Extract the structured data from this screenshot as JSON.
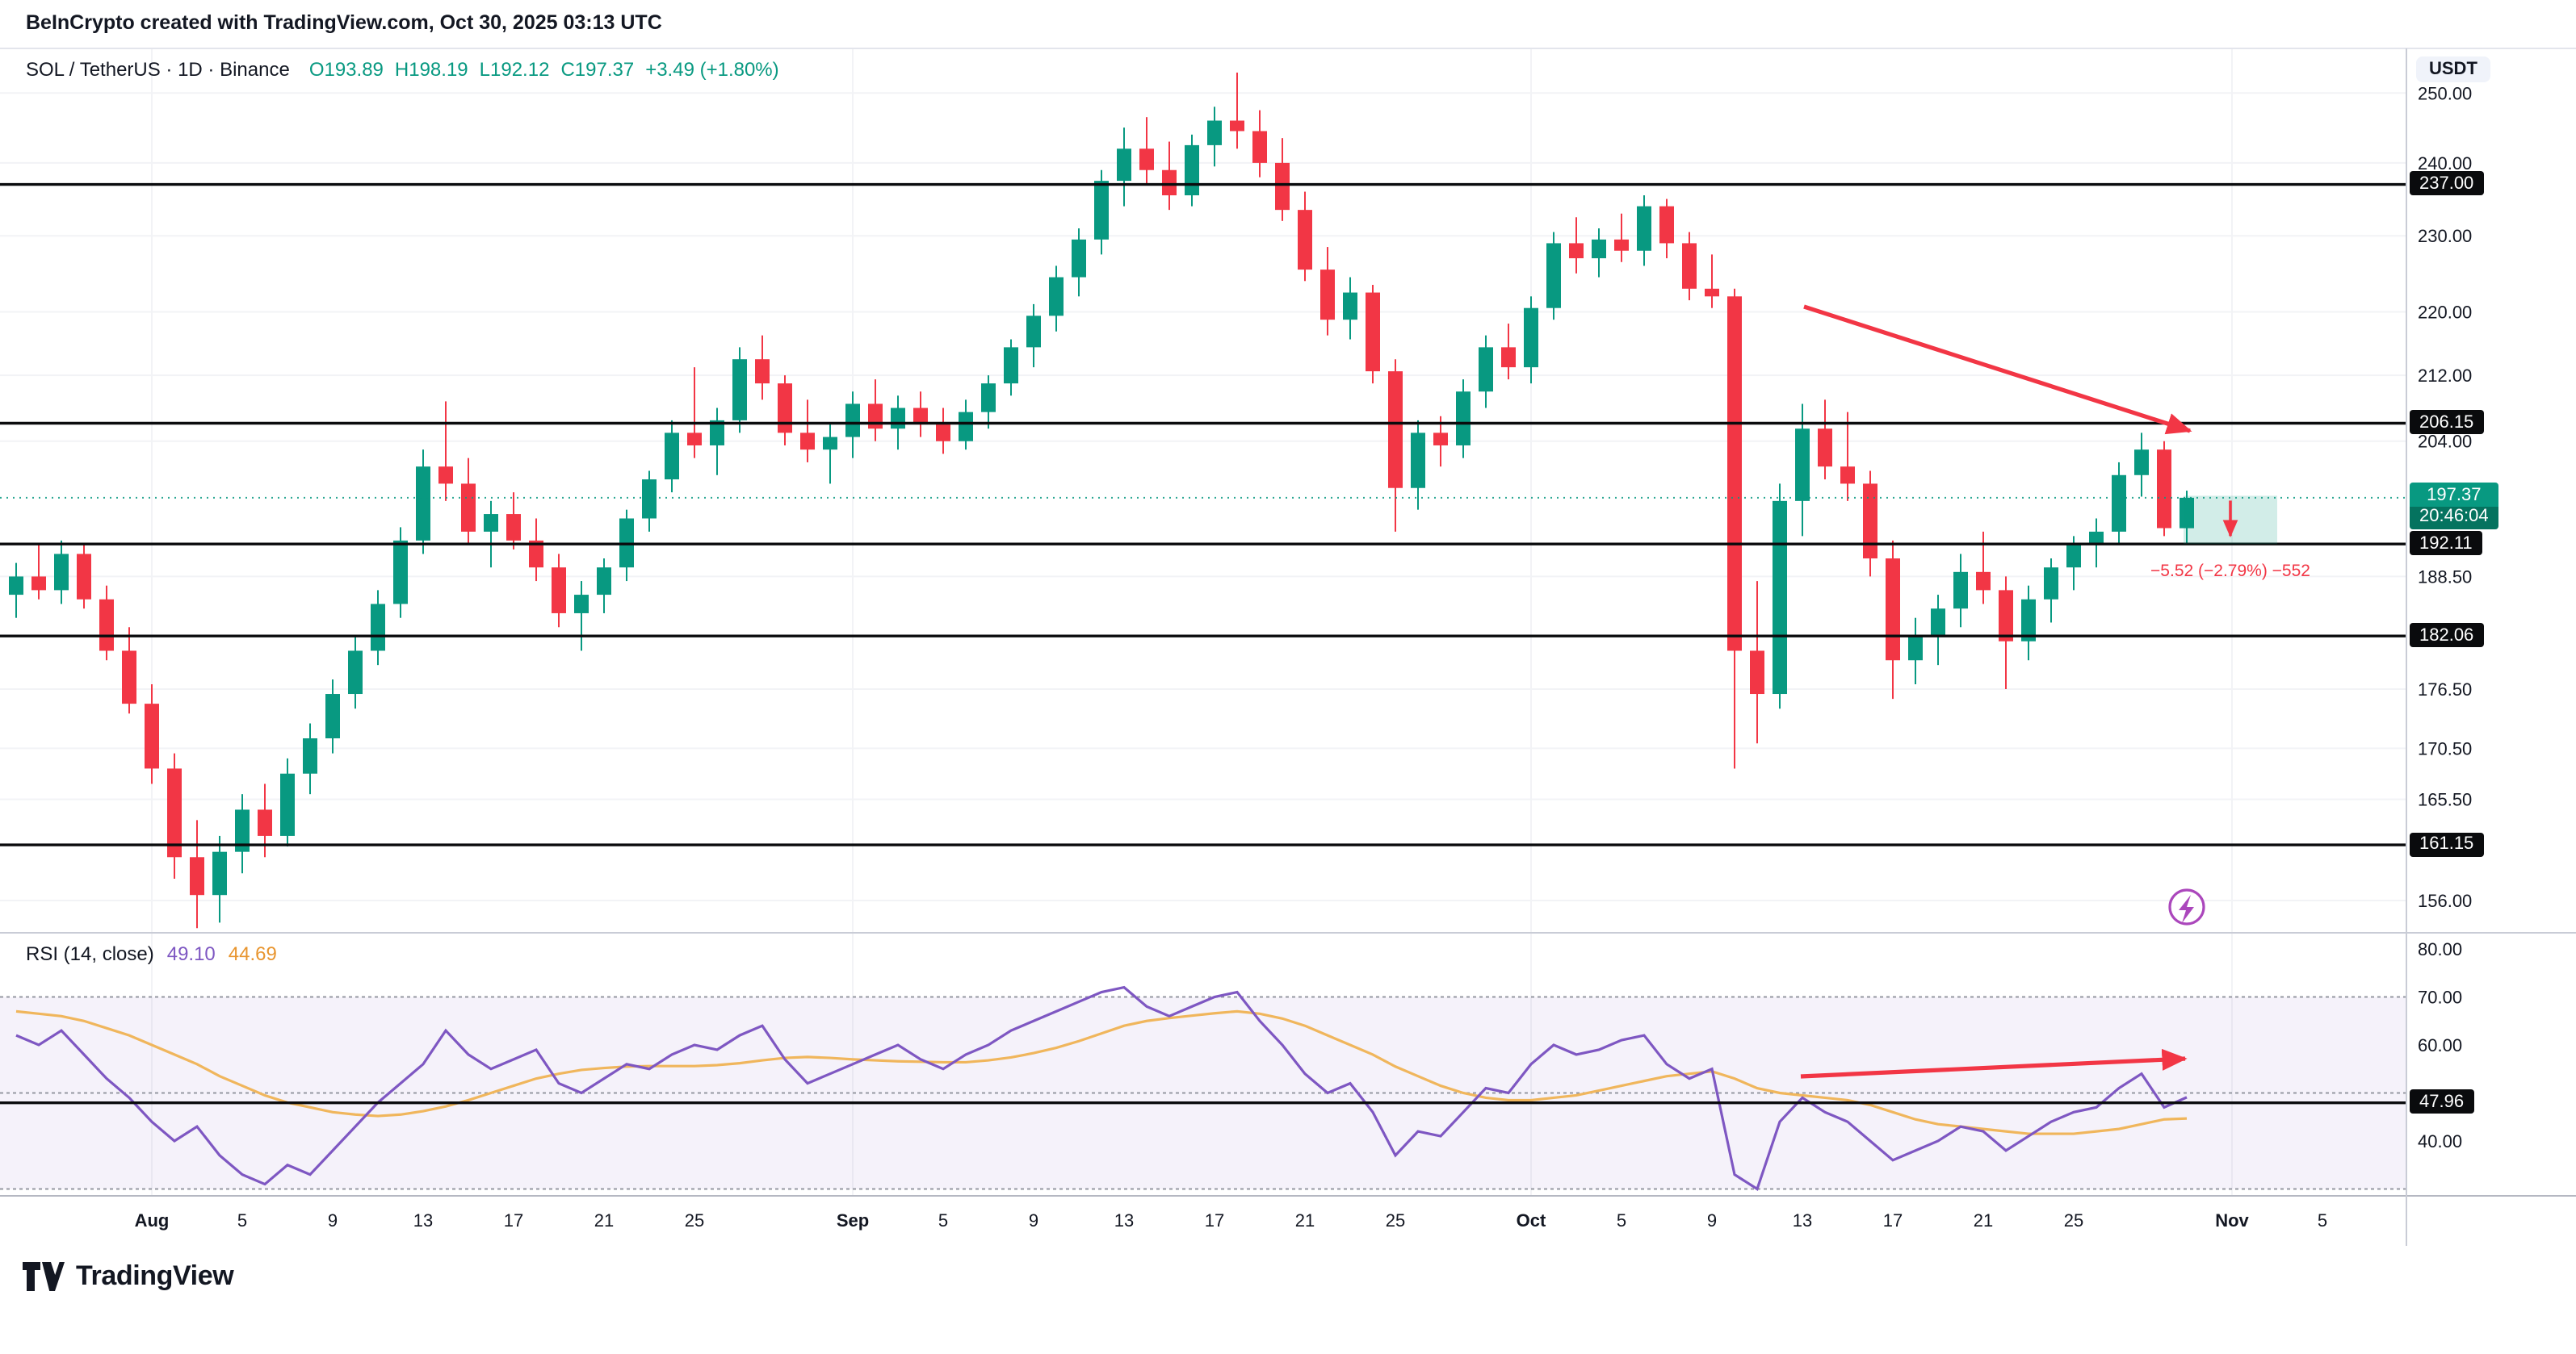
{
  "header": {
    "attribution": "BeInCrypto created with TradingView.com, Oct 30, 2025 03:13 UTC"
  },
  "symbol_bar": {
    "title": "SOL / TetherUS · 1D · Binance",
    "open": "O193.89",
    "high": "H198.19",
    "low": "L192.12",
    "close": "C197.37",
    "change": "+3.49 (+1.80%)"
  },
  "price_scale": {
    "currency": "USDT"
  },
  "rsi_bar": {
    "label": "RSI (14, close)",
    "value": "49.10",
    "ma_value": "44.69"
  },
  "footer": {
    "logo_text": "TradingView"
  },
  "colors": {
    "up": "#089981",
    "down": "#F23645",
    "arrow": "#F23645",
    "rsi": "#7E57C2",
    "rsi_ma": "#F0B65C",
    "rsi_ma_label": "#E8952F",
    "line_black": "#0A0B0D",
    "band_fill": "rgba(126,87,194,0.08)",
    "dashed": "#9598A1",
    "grid": "#F2F3F6",
    "lightning": "#AB47BC"
  },
  "chart_data": {
    "type": "candlestick",
    "title": "SOL / TetherUS · 1D · Binance",
    "exchange": "Binance",
    "interval": "1D",
    "y_scale": "log",
    "ohlc_display": {
      "open": 193.89,
      "high": 198.19,
      "low": 192.12,
      "close": 197.37,
      "change": "+3.49 (+1.80%)"
    },
    "price_ticks": [
      {
        "label": "250.00",
        "value": 250
      },
      {
        "label": "240.00",
        "value": 240
      },
      {
        "label": "230.00",
        "value": 230
      },
      {
        "label": "220.00",
        "value": 220
      },
      {
        "label": "212.00",
        "value": 212
      },
      {
        "label": "204.00",
        "value": 204
      },
      {
        "label": "188.50",
        "value": 188.5
      },
      {
        "label": "176.50",
        "value": 176.5
      },
      {
        "label": "170.50",
        "value": 170.5
      },
      {
        "label": "165.50",
        "value": 165.5
      },
      {
        "label": "156.00",
        "value": 156
      }
    ],
    "level_lines": [
      {
        "label": "237.00",
        "value": 237
      },
      {
        "label": "206.15",
        "value": 206.15
      },
      {
        "label": "192.11",
        "value": 192.11
      },
      {
        "label": "182.06",
        "value": 182.06
      },
      {
        "label": "161.15",
        "value": 161.15
      }
    ],
    "last_price": {
      "label": "197.37",
      "value": 197.37,
      "countdown": "20:46:04"
    },
    "x_ticks": [
      {
        "label": "Aug",
        "index": 6,
        "major": true
      },
      {
        "label": "5",
        "index": 10
      },
      {
        "label": "9",
        "index": 14
      },
      {
        "label": "13",
        "index": 18
      },
      {
        "label": "17",
        "index": 22
      },
      {
        "label": "21",
        "index": 26
      },
      {
        "label": "25",
        "index": 30
      },
      {
        "label": "Sep",
        "index": 37,
        "major": true
      },
      {
        "label": "5",
        "index": 41
      },
      {
        "label": "9",
        "index": 45
      },
      {
        "label": "13",
        "index": 49
      },
      {
        "label": "17",
        "index": 53
      },
      {
        "label": "21",
        "index": 57
      },
      {
        "label": "25",
        "index": 61
      },
      {
        "label": "Oct",
        "index": 67,
        "major": true
      },
      {
        "label": "5",
        "index": 71
      },
      {
        "label": "9",
        "index": 75
      },
      {
        "label": "13",
        "index": 79
      },
      {
        "label": "17",
        "index": 83
      },
      {
        "label": "21",
        "index": 87
      },
      {
        "label": "25",
        "index": 91
      },
      {
        "label": "Nov",
        "index": 98,
        "major": true
      },
      {
        "label": "5",
        "index": 102
      }
    ],
    "candles": [
      [
        186.5,
        190.0,
        184.0,
        188.5
      ],
      [
        188.5,
        192.0,
        186.0,
        187.0
      ],
      [
        187.0,
        192.5,
        185.5,
        191.0
      ],
      [
        191.0,
        192.0,
        185.0,
        186.0
      ],
      [
        186.0,
        187.5,
        179.5,
        180.5
      ],
      [
        180.5,
        183.0,
        174.0,
        175.0
      ],
      [
        175.0,
        177.0,
        167.0,
        168.5
      ],
      [
        168.5,
        170.0,
        158.0,
        160.0
      ],
      [
        160.0,
        163.5,
        153.5,
        156.5
      ],
      [
        156.5,
        162.0,
        154.0,
        160.5
      ],
      [
        160.5,
        166.0,
        158.5,
        164.5
      ],
      [
        164.5,
        167.0,
        160.0,
        162.0
      ],
      [
        162.0,
        169.5,
        161.0,
        168.0
      ],
      [
        168.0,
        173.0,
        166.0,
        171.5
      ],
      [
        171.5,
        177.5,
        170.0,
        176.0
      ],
      [
        176.0,
        182.0,
        174.5,
        180.5
      ],
      [
        180.5,
        187.0,
        179.0,
        185.5
      ],
      [
        185.5,
        194.0,
        184.0,
        192.5
      ],
      [
        192.5,
        203.0,
        191.0,
        201.0
      ],
      [
        201.0,
        208.8,
        197.0,
        199.0
      ],
      [
        199.0,
        202.0,
        192.0,
        193.5
      ],
      [
        193.5,
        197.0,
        189.5,
        195.5
      ],
      [
        195.5,
        198.0,
        191.5,
        192.5
      ],
      [
        192.5,
        195.0,
        188.0,
        189.5
      ],
      [
        189.5,
        191.0,
        183.0,
        184.5
      ],
      [
        184.5,
        188.0,
        180.5,
        186.5
      ],
      [
        186.5,
        190.5,
        184.5,
        189.5
      ],
      [
        189.5,
        196.0,
        188.0,
        195.0
      ],
      [
        195.0,
        200.5,
        193.5,
        199.5
      ],
      [
        199.5,
        206.5,
        198.0,
        205.0
      ],
      [
        205.0,
        213.0,
        202.0,
        203.5
      ],
      [
        203.5,
        208.0,
        200.0,
        206.5
      ],
      [
        206.5,
        215.5,
        205.0,
        214.0
      ],
      [
        214.0,
        217.0,
        209.0,
        211.0
      ],
      [
        211.0,
        212.0,
        203.5,
        205.0
      ],
      [
        205.0,
        209.0,
        201.5,
        203.0
      ],
      [
        203.0,
        206.0,
        199.0,
        204.5
      ],
      [
        204.5,
        210.0,
        202.0,
        208.5
      ],
      [
        208.5,
        211.5,
        204.0,
        205.5
      ],
      [
        205.5,
        209.5,
        203.0,
        208.0
      ],
      [
        208.0,
        210.0,
        204.5,
        206.0
      ],
      [
        206.0,
        208.0,
        202.5,
        204.0
      ],
      [
        204.0,
        209.0,
        203.0,
        207.5
      ],
      [
        207.5,
        212.0,
        205.5,
        211.0
      ],
      [
        211.0,
        216.5,
        209.5,
        215.5
      ],
      [
        215.5,
        221.0,
        213.0,
        219.5
      ],
      [
        219.5,
        226.0,
        217.5,
        224.5
      ],
      [
        224.5,
        231.0,
        222.0,
        229.5
      ],
      [
        229.5,
        239.0,
        227.5,
        237.5
      ],
      [
        237.5,
        245.0,
        234.0,
        242.0
      ],
      [
        242.0,
        246.5,
        237.0,
        239.0
      ],
      [
        239.0,
        243.0,
        233.5,
        235.5
      ],
      [
        235.5,
        244.0,
        234.0,
        242.5
      ],
      [
        242.5,
        248.0,
        239.5,
        246.0
      ],
      [
        246.0,
        253.0,
        242.0,
        244.5
      ],
      [
        244.5,
        247.5,
        238.0,
        240.0
      ],
      [
        240.0,
        243.5,
        232.0,
        233.5
      ],
      [
        233.5,
        236.0,
        224.0,
        225.5
      ],
      [
        225.5,
        228.5,
        217.0,
        219.0
      ],
      [
        219.0,
        224.5,
        216.5,
        222.5
      ],
      [
        222.5,
        223.5,
        211.0,
        212.5
      ],
      [
        212.5,
        214.0,
        193.5,
        198.5
      ],
      [
        198.5,
        206.5,
        196.0,
        205.0
      ],
      [
        205.0,
        207.0,
        201.0,
        203.5
      ],
      [
        203.5,
        211.5,
        202.0,
        210.0
      ],
      [
        210.0,
        217.0,
        208.0,
        215.5
      ],
      [
        215.5,
        218.5,
        211.5,
        213.0
      ],
      [
        213.0,
        222.0,
        211.0,
        220.5
      ],
      [
        220.5,
        230.5,
        219.0,
        229.0
      ],
      [
        229.0,
        232.5,
        225.0,
        227.0
      ],
      [
        227.0,
        231.0,
        224.5,
        229.5
      ],
      [
        229.5,
        233.0,
        226.5,
        228.0
      ],
      [
        228.0,
        235.5,
        226.0,
        234.0
      ],
      [
        234.0,
        235.0,
        227.0,
        229.0
      ],
      [
        229.0,
        230.5,
        221.5,
        223.0
      ],
      [
        223.0,
        227.5,
        220.5,
        222.0
      ],
      [
        222.0,
        223.0,
        168.5,
        180.5
      ],
      [
        180.5,
        188.0,
        171.0,
        176.0
      ],
      [
        176.0,
        199.0,
        174.5,
        197.0
      ],
      [
        197.0,
        208.5,
        193.0,
        205.5
      ],
      [
        205.5,
        209.0,
        199.5,
        201.0
      ],
      [
        201.0,
        207.5,
        197.0,
        199.0
      ],
      [
        199.0,
        200.5,
        188.5,
        190.5
      ],
      [
        190.5,
        192.5,
        175.5,
        179.5
      ],
      [
        179.5,
        184.0,
        177.0,
        182.0
      ],
      [
        182.0,
        186.5,
        179.0,
        185.0
      ],
      [
        185.0,
        191.0,
        183.0,
        189.0
      ],
      [
        189.0,
        193.5,
        185.5,
        187.0
      ],
      [
        187.0,
        188.5,
        176.5,
        181.5
      ],
      [
        181.5,
        187.5,
        179.5,
        186.0
      ],
      [
        186.0,
        190.5,
        183.5,
        189.5
      ],
      [
        189.5,
        193.0,
        187.0,
        192.0
      ],
      [
        192.0,
        195.0,
        189.5,
        193.5
      ],
      [
        193.5,
        201.5,
        192.0,
        200.0
      ],
      [
        200.0,
        205.0,
        197.5,
        203.0
      ],
      [
        203.0,
        204.0,
        193.0,
        193.9
      ],
      [
        193.89,
        198.19,
        192.12,
        197.37
      ]
    ],
    "rsi": {
      "label": "RSI (14, close)",
      "value": 49.1,
      "ma_value": 44.69,
      "hline": {
        "label": "47.96",
        "value": 47.96
      },
      "ticks": [
        {
          "label": "80.00",
          "value": 80
        },
        {
          "label": "70.00",
          "value": 70
        },
        {
          "label": "60.00",
          "value": 60
        },
        {
          "label": "40.00",
          "value": 40
        }
      ],
      "bands": [
        70,
        50,
        30
      ],
      "series": [
        62,
        60,
        63,
        58,
        53,
        49,
        44,
        40,
        43,
        37,
        33,
        31,
        35,
        33,
        38,
        43,
        48,
        52,
        56,
        63,
        58,
        55,
        57,
        59,
        52,
        50,
        53,
        56,
        55,
        58,
        60,
        59,
        62,
        64,
        57,
        52,
        54,
        56,
        58,
        60,
        57,
        55,
        58,
        60,
        63,
        65,
        67,
        69,
        71,
        72,
        68,
        66,
        68,
        70,
        71,
        65,
        60,
        54,
        50,
        52,
        46,
        37,
        42,
        41,
        46,
        51,
        50,
        56,
        60,
        58,
        59,
        61,
        62,
        56,
        53,
        55,
        33,
        30,
        44,
        49,
        46,
        44,
        40,
        36,
        38,
        40,
        43,
        42,
        38,
        41,
        44,
        46,
        47,
        51,
        54,
        47,
        49.1
      ],
      "ma_series": [
        67,
        66.5,
        66,
        65,
        63.5,
        62,
        60,
        58,
        56,
        53.5,
        51.5,
        49.5,
        48,
        47,
        46,
        45.5,
        45.2,
        45.5,
        46.2,
        47.2,
        48.5,
        50,
        51.5,
        53,
        54,
        54.8,
        55.2,
        55.5,
        55.6,
        55.6,
        55.6,
        55.8,
        56.2,
        56.8,
        57.3,
        57.5,
        57.3,
        57,
        56.8,
        56.6,
        56.5,
        56.4,
        56.4,
        56.8,
        57.4,
        58.3,
        59.4,
        60.8,
        62.4,
        64,
        65,
        65.6,
        66.1,
        66.6,
        67,
        66.5,
        65.5,
        64,
        62,
        60,
        58,
        55.5,
        53.5,
        51.5,
        50,
        49,
        48.5,
        48.5,
        49,
        49.5,
        50.5,
        51.5,
        52.5,
        53.5,
        54,
        54.5,
        53,
        51,
        50,
        49.5,
        49,
        48.5,
        47.5,
        46,
        44.5,
        43.5,
        43,
        42.5,
        42,
        41.5,
        41.5,
        41.5,
        42,
        42.5,
        43.5,
        44.5,
        44.69
      ]
    },
    "annotations": {
      "price_arrow": {
        "x1": 1117,
        "y1": 190,
        "x2": 1356,
        "y2": 267
      },
      "rsi_arrow": {
        "x1": 1115,
        "y1": 667,
        "x2": 1353,
        "y2": 656
      },
      "measure": {
        "x": 1352,
        "width": 58,
        "from_price": 197.6,
        "to_price": 192.11,
        "text": "−5.52 (−2.79%) −552"
      },
      "lightning": {
        "cx": 1354,
        "cy": 562
      }
    }
  }
}
